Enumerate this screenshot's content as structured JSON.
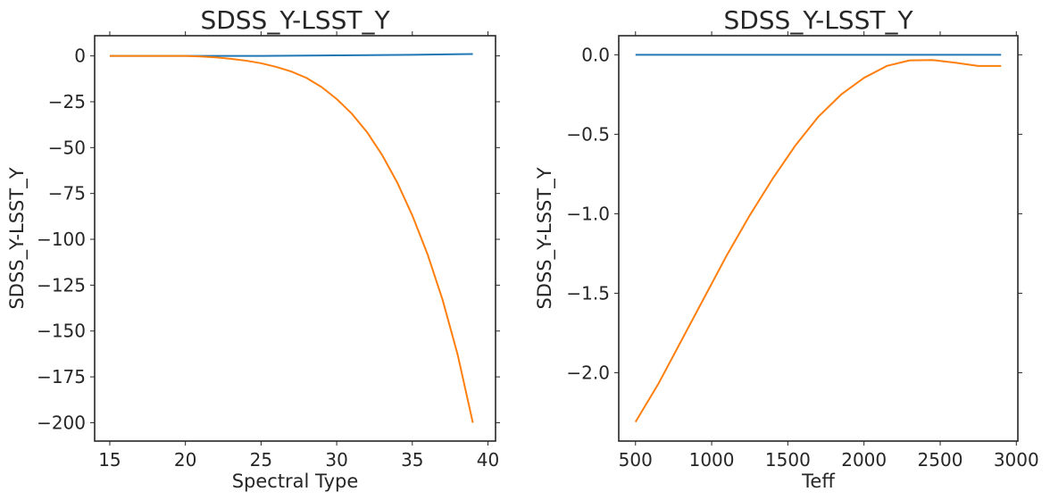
{
  "figure": {
    "background": "#ffffff",
    "series_colors": [
      "#1f77b4",
      "#ff7f0e"
    ]
  },
  "chart_data": [
    {
      "type": "line",
      "title": "SDSS_Y-LSST_Y",
      "xlabel": "Spectral Type",
      "ylabel": "SDSS_Y-LSST_Y",
      "xlim": [
        14,
        40.5
      ],
      "ylim": [
        -210,
        11
      ],
      "xticks": [
        15,
        20,
        25,
        30,
        35,
        40
      ],
      "yticks": [
        0,
        -25,
        -50,
        -75,
        -100,
        -125,
        -150,
        -175,
        -200
      ],
      "xtick_labels": [
        "15",
        "20",
        "25",
        "30",
        "35",
        "40"
      ],
      "ytick_labels": [
        "0",
        "−25",
        "−50",
        "−75",
        "−100",
        "−125",
        "−150",
        "−175",
        "−200"
      ],
      "series": [
        {
          "color": "#1f77b4",
          "x": [
            15,
            20,
            25,
            30,
            35,
            39
          ],
          "y": [
            0,
            0,
            0,
            0.3,
            0.6,
            1
          ]
        },
        {
          "color": "#ff7f0e",
          "x": [
            15,
            16,
            17,
            18,
            19,
            20,
            21,
            22,
            23,
            24,
            25,
            26,
            27,
            28,
            29,
            30,
            31,
            32,
            33,
            34,
            35,
            36,
            37,
            38,
            39
          ],
          "y": [
            0,
            0,
            0,
            0,
            0,
            0,
            -0.3,
            -0.8,
            -1.6,
            -2.6,
            -4,
            -6,
            -8.5,
            -12,
            -17,
            -23.5,
            -31.5,
            -41.5,
            -54,
            -69,
            -87,
            -108,
            -133,
            -163,
            -200
          ]
        }
      ]
    },
    {
      "type": "line",
      "title": "SDSS_Y-LSST_Y",
      "xlabel": "Teff",
      "ylabel": "SDSS_Y-LSST_Y",
      "xlim": [
        390,
        3010
      ],
      "ylim": [
        -2.43,
        0.12
      ],
      "xticks": [
        500,
        1000,
        1500,
        2000,
        2500,
        3000
      ],
      "yticks": [
        0,
        -0.5,
        -1,
        -1.5,
        -2
      ],
      "xtick_labels": [
        "500",
        "1000",
        "1500",
        "2000",
        "2500",
        "3000"
      ],
      "ytick_labels": [
        "0.0",
        "−0.5",
        "−1.0",
        "−1.5",
        "−2.0"
      ],
      "series": [
        {
          "color": "#1f77b4",
          "x": [
            500,
            2900
          ],
          "y": [
            0,
            0
          ]
        },
        {
          "color": "#ff7f0e",
          "x": [
            500,
            650,
            800,
            950,
            1100,
            1250,
            1400,
            1550,
            1700,
            1850,
            2000,
            2150,
            2300,
            2450,
            2600,
            2750,
            2900
          ],
          "y": [
            -2.31,
            -2.07,
            -1.8,
            -1.53,
            -1.26,
            -1.01,
            -0.78,
            -0.57,
            -0.39,
            -0.25,
            -0.145,
            -0.07,
            -0.035,
            -0.033,
            -0.05,
            -0.07,
            -0.07
          ]
        }
      ]
    }
  ]
}
